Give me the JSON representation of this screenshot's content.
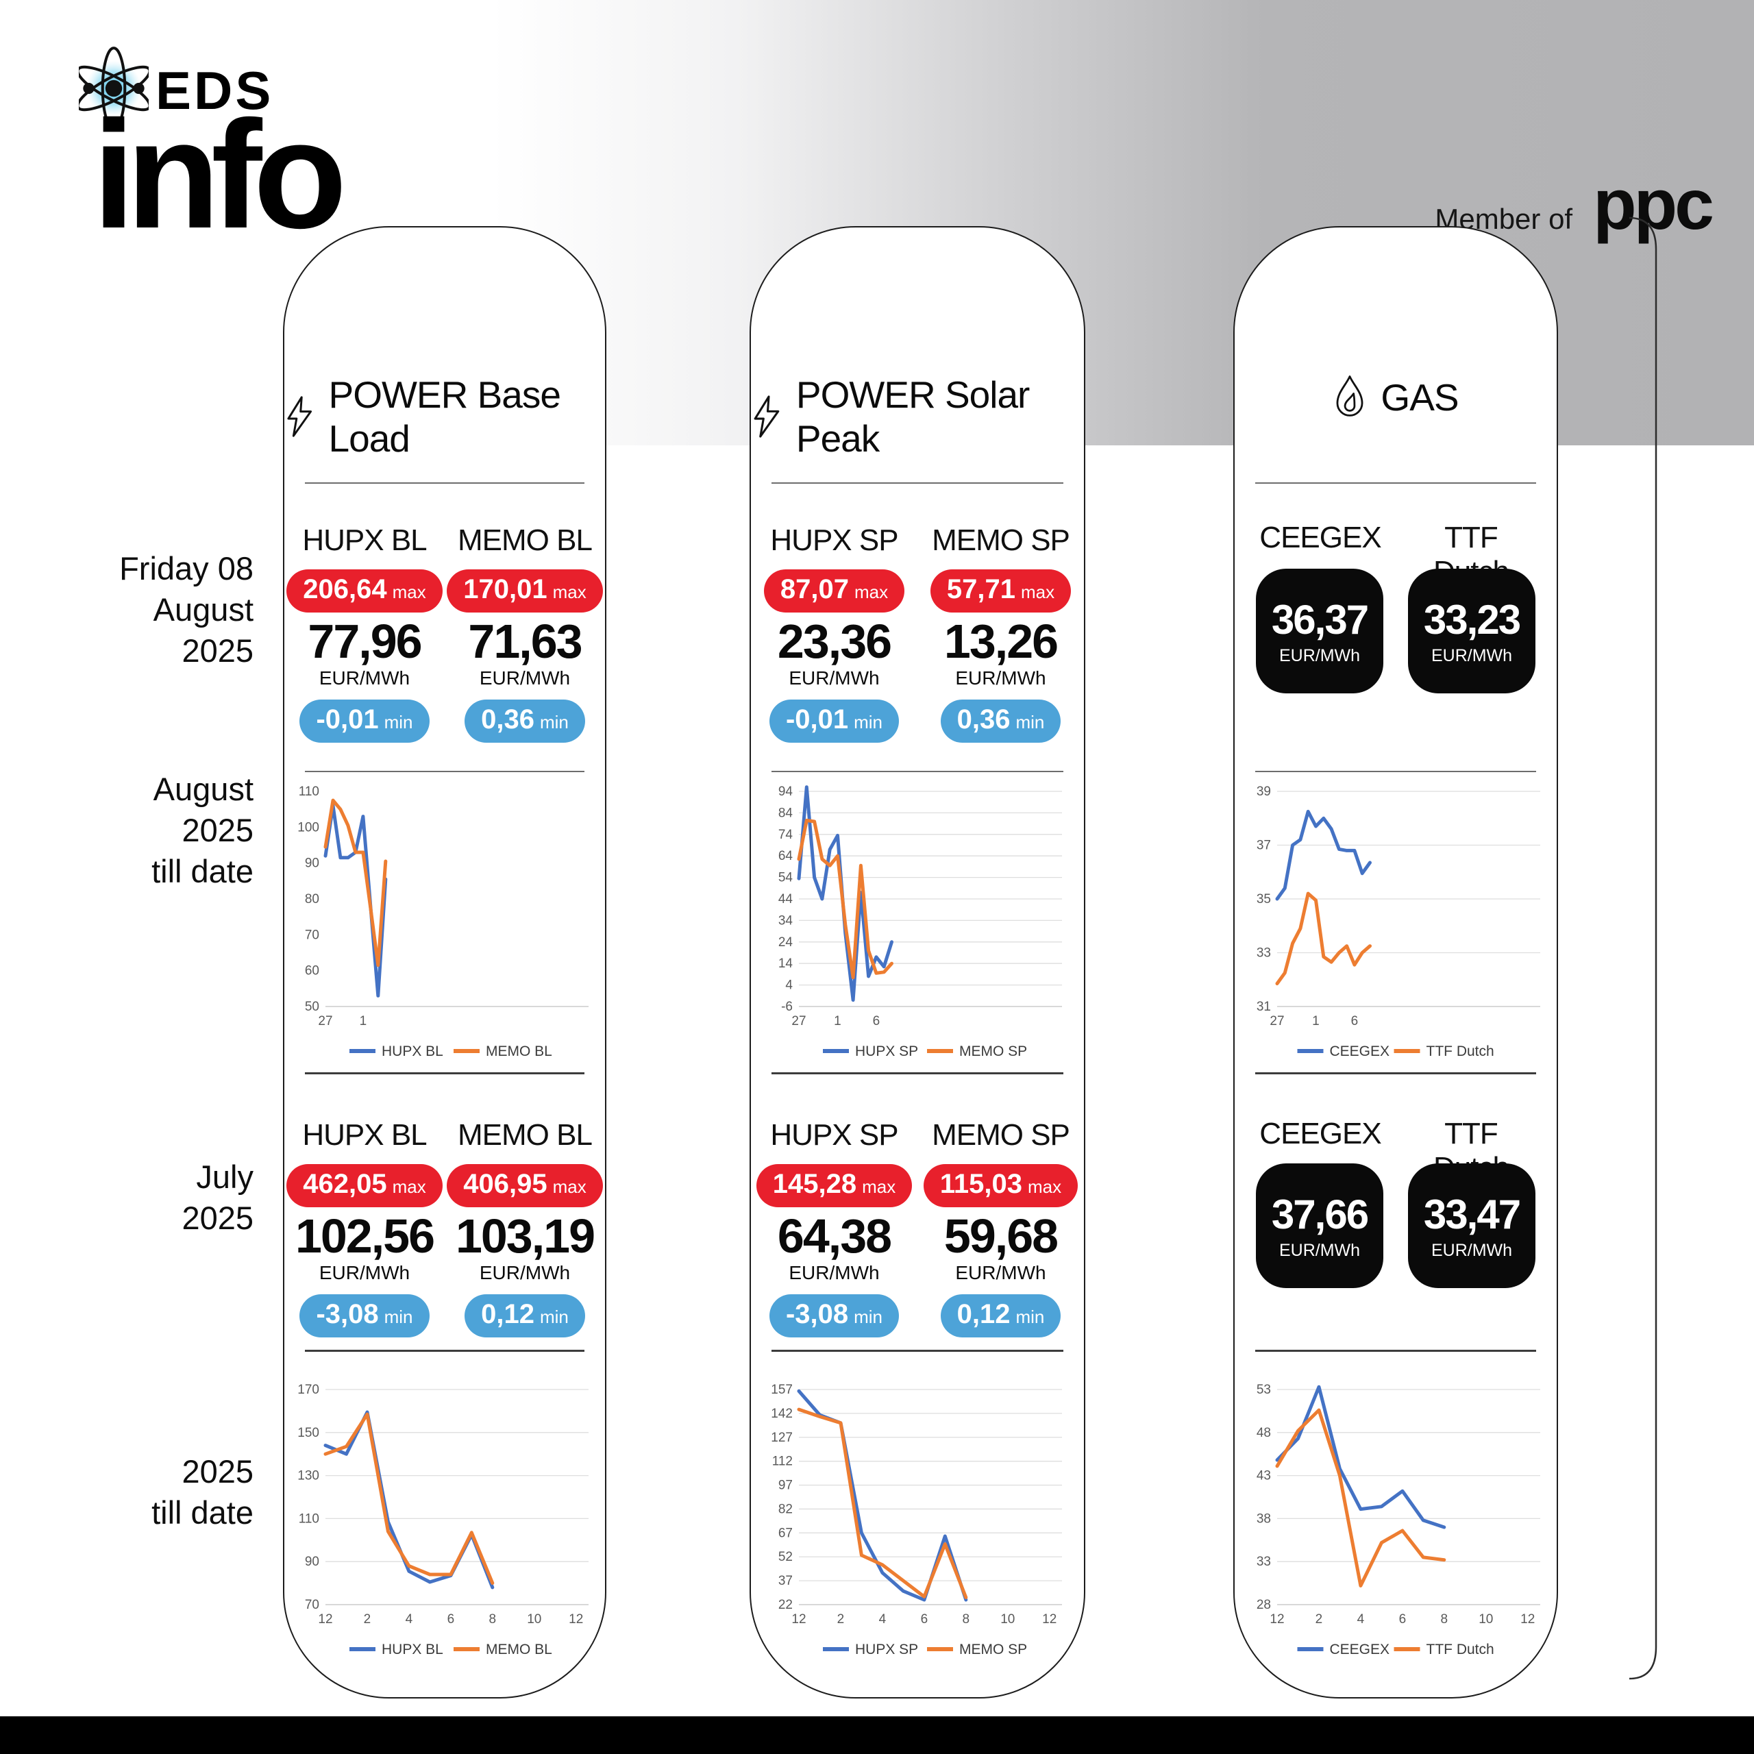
{
  "brand": {
    "eds": "EDS",
    "info": "info",
    "member_of": "Member of",
    "ppc": "ppc"
  },
  "row_labels": {
    "daily": [
      "Friday 08",
      "August",
      "2025"
    ],
    "august": [
      "August",
      "2025",
      "till date"
    ],
    "july": [
      "July",
      "2025"
    ],
    "ytd": [
      "2025",
      "till date"
    ]
  },
  "badge_suffix": {
    "max": "max",
    "min": "min"
  },
  "cards": [
    {
      "title": "POWER Base Load",
      "daily": {
        "cols": [
          {
            "label": "HUPX BL",
            "max": "206,64",
            "value": "77,96",
            "unit": "EUR/MWh",
            "min": "-0,01"
          },
          {
            "label": "MEMO BL",
            "max": "170,01",
            "value": "71,63",
            "unit": "EUR/MWh",
            "min": "0,36"
          }
        ]
      },
      "monthly": {
        "cols": [
          {
            "label": "HUPX BL",
            "max": "462,05",
            "value": "102,56",
            "unit": "EUR/MWh",
            "min": "-3,08"
          },
          {
            "label": "MEMO BL",
            "max": "406,95",
            "value": "103,19",
            "unit": "EUR/MWh",
            "min": "0,12"
          }
        ]
      }
    },
    {
      "title": "POWER Solar Peak",
      "daily": {
        "cols": [
          {
            "label": "HUPX SP",
            "max": "87,07",
            "value": "23,36",
            "unit": "EUR/MWh",
            "min": "-0,01"
          },
          {
            "label": "MEMO SP",
            "max": "57,71",
            "value": "13,26",
            "unit": "EUR/MWh",
            "min": "0,36"
          }
        ]
      },
      "monthly": {
        "cols": [
          {
            "label": "HUPX SP",
            "max": "145,28",
            "value": "64,38",
            "unit": "EUR/MWh",
            "min": "-3,08"
          },
          {
            "label": "MEMO SP",
            "max": "115,03",
            "value": "59,68",
            "unit": "EUR/MWh",
            "min": "0,12"
          }
        ]
      }
    },
    {
      "title": "GAS",
      "daily": {
        "cols": [
          {
            "label": "CEEGEX",
            "value": "36,37",
            "unit": "EUR/MWh"
          },
          {
            "label": "TTF Dutch",
            "value": "33,23",
            "unit": "EUR/MWh"
          }
        ]
      },
      "monthly": {
        "cols": [
          {
            "label": "CEEGEX",
            "value": "37,66",
            "unit": "EUR/MWh"
          },
          {
            "label": "TTF Dutch",
            "value": "33,47",
            "unit": "EUR/MWh"
          }
        ]
      }
    }
  ],
  "chart_data": [
    {
      "type": "line",
      "title": "POWER Base Load - August 2025 till date",
      "x": [
        "27",
        "28",
        "29",
        "30",
        "31",
        "1",
        "2",
        "3",
        "4"
      ],
      "series": [
        {
          "name": "HUPX BL",
          "values": [
            92,
            106,
            91.5,
            91.5,
            93,
            103,
            78,
            53,
            85.5
          ]
        },
        {
          "name": "MEMO BL",
          "values": [
            94.5,
            107.5,
            105,
            100.5,
            93,
            93,
            77.5,
            61.5,
            90.5
          ]
        }
      ],
      "ylim": [
        50,
        110
      ],
      "yticks": [
        50,
        60,
        70,
        80,
        90,
        100,
        110
      ],
      "xticks": [
        {
          "i": 0,
          "label": "27"
        },
        {
          "i": 5,
          "label": "1"
        }
      ],
      "slots": 35,
      "grid": false,
      "legend_position": "bottom"
    },
    {
      "type": "line",
      "title": "POWER Solar Peak - August 2025 till date",
      "x": [
        "27",
        "28",
        "29",
        "30",
        "31",
        "1",
        "2",
        "3",
        "4",
        "5",
        "6",
        "7",
        "8"
      ],
      "series": [
        {
          "name": "HUPX SP",
          "values": [
            53.5,
            96,
            54,
            44,
            67,
            73.5,
            28,
            -3,
            47,
            8,
            17,
            12.5,
            24
          ]
        },
        {
          "name": "MEMO SP",
          "values": [
            62.5,
            80.5,
            80,
            62.5,
            59.5,
            64,
            32,
            7.5,
            59.5,
            20,
            9.5,
            10,
            14
          ]
        }
      ],
      "ylim": [
        -6,
        94
      ],
      "yticks": [
        -6,
        4,
        14,
        24,
        34,
        44,
        54,
        64,
        74,
        84,
        94
      ],
      "xticks": [
        {
          "i": 0,
          "label": "27"
        },
        {
          "i": 5,
          "label": "1"
        },
        {
          "i": 10,
          "label": "6"
        }
      ],
      "slots": 34,
      "grid": true,
      "legend_position": "bottom"
    },
    {
      "type": "line",
      "title": "GAS - August 2025 till date",
      "x": [
        "27",
        "28",
        "29",
        "30",
        "31",
        "1",
        "2",
        "3",
        "4",
        "5",
        "6",
        "7",
        "8"
      ],
      "series": [
        {
          "name": "CEEGEX",
          "values": [
            35,
            35.4,
            37,
            37.2,
            38.25,
            37.7,
            38,
            37.6,
            36.85,
            36.8,
            36.8,
            35.95,
            36.35
          ]
        },
        {
          "name": "TTF Dutch",
          "values": [
            31.85,
            32.25,
            33.35,
            33.9,
            35.2,
            34.95,
            32.85,
            32.65,
            33,
            33.25,
            32.55,
            33,
            33.25
          ]
        }
      ],
      "ylim": [
        31,
        39
      ],
      "yticks": [
        31,
        33,
        35,
        37,
        39
      ],
      "xticks": [
        {
          "i": 0,
          "label": "27"
        },
        {
          "i": 5,
          "label": "1"
        },
        {
          "i": 10,
          "label": "6"
        }
      ],
      "slots": 34,
      "grid": true,
      "legend_position": "bottom"
    },
    {
      "type": "line",
      "title": "POWER Base Load - 2025 till date (monthly)",
      "x": [
        "12",
        "1",
        "2",
        "3",
        "4",
        "5",
        "6",
        "7",
        "8"
      ],
      "series": [
        {
          "name": "HUPX BL",
          "values": [
            144,
            140,
            159.5,
            108.5,
            85.5,
            80.5,
            83.5,
            102.5,
            78
          ]
        },
        {
          "name": "MEMO BL",
          "values": [
            140,
            143.5,
            158.5,
            104,
            88,
            84,
            84,
            103.5,
            80
          ]
        }
      ],
      "ylim": [
        70,
        170
      ],
      "yticks": [
        70,
        90,
        110,
        130,
        150,
        170
      ],
      "xticks": [
        {
          "i": 0,
          "label": "12"
        },
        {
          "i": 2,
          "label": "2"
        },
        {
          "i": 4,
          "label": "4"
        },
        {
          "i": 6,
          "label": "6"
        },
        {
          "i": 8,
          "label": "8"
        },
        {
          "i": 10,
          "label": "10"
        },
        {
          "i": 12,
          "label": "12"
        }
      ],
      "slots": 12.6,
      "grid": true,
      "legend_position": "bottom"
    },
    {
      "type": "line",
      "title": "POWER Solar Peak - 2025 till date (monthly)",
      "x": [
        "12",
        "1",
        "2",
        "3",
        "4",
        "5",
        "6",
        "7",
        "8"
      ],
      "series": [
        {
          "name": "HUPX SP",
          "values": [
            156,
            141,
            136,
            67,
            42,
            30.5,
            25,
            65,
            25
          ]
        },
        {
          "name": "MEMO SP",
          "values": [
            144.5,
            140,
            136,
            53,
            47,
            37,
            27,
            60,
            26.5
          ]
        }
      ],
      "ylim": [
        22,
        157
      ],
      "yticks": [
        22,
        37,
        52,
        67,
        82,
        97,
        112,
        127,
        142,
        157
      ],
      "xticks": [
        {
          "i": 0,
          "label": "12"
        },
        {
          "i": 2,
          "label": "2"
        },
        {
          "i": 4,
          "label": "4"
        },
        {
          "i": 6,
          "label": "6"
        },
        {
          "i": 8,
          "label": "8"
        },
        {
          "i": 10,
          "label": "10"
        },
        {
          "i": 12,
          "label": "12"
        }
      ],
      "slots": 12.6,
      "grid": true,
      "legend_position": "bottom"
    },
    {
      "type": "line",
      "title": "GAS - 2025 till date (monthly)",
      "x": [
        "12",
        "1",
        "2",
        "3",
        "4",
        "5",
        "6",
        "7",
        "8"
      ],
      "series": [
        {
          "name": "CEEGEX",
          "values": [
            44.8,
            47.3,
            53.3,
            43.8,
            39.1,
            39.4,
            41.2,
            37.8,
            37
          ]
        },
        {
          "name": "TTF Dutch",
          "values": [
            44.1,
            48.2,
            50.6,
            43,
            30.2,
            35.2,
            36.6,
            33.5,
            33.2
          ]
        }
      ],
      "ylim": [
        28,
        53
      ],
      "yticks": [
        28,
        33,
        38,
        43,
        48,
        53
      ],
      "xticks": [
        {
          "i": 0,
          "label": "12"
        },
        {
          "i": 2,
          "label": "2"
        },
        {
          "i": 4,
          "label": "4"
        },
        {
          "i": 6,
          "label": "6"
        },
        {
          "i": 8,
          "label": "8"
        },
        {
          "i": 10,
          "label": "10"
        },
        {
          "i": 12,
          "label": "12"
        }
      ],
      "slots": 12.6,
      "grid": true,
      "legend_position": "bottom"
    }
  ],
  "colors": {
    "series_blue": "#4472c4",
    "series_orange": "#ed7d31",
    "badge_red": "#e8202c",
    "badge_blue": "#4da3d8",
    "band_gray": "#b2b2b4",
    "tile_black": "#0a0a0a",
    "footer_black": "#000000"
  }
}
